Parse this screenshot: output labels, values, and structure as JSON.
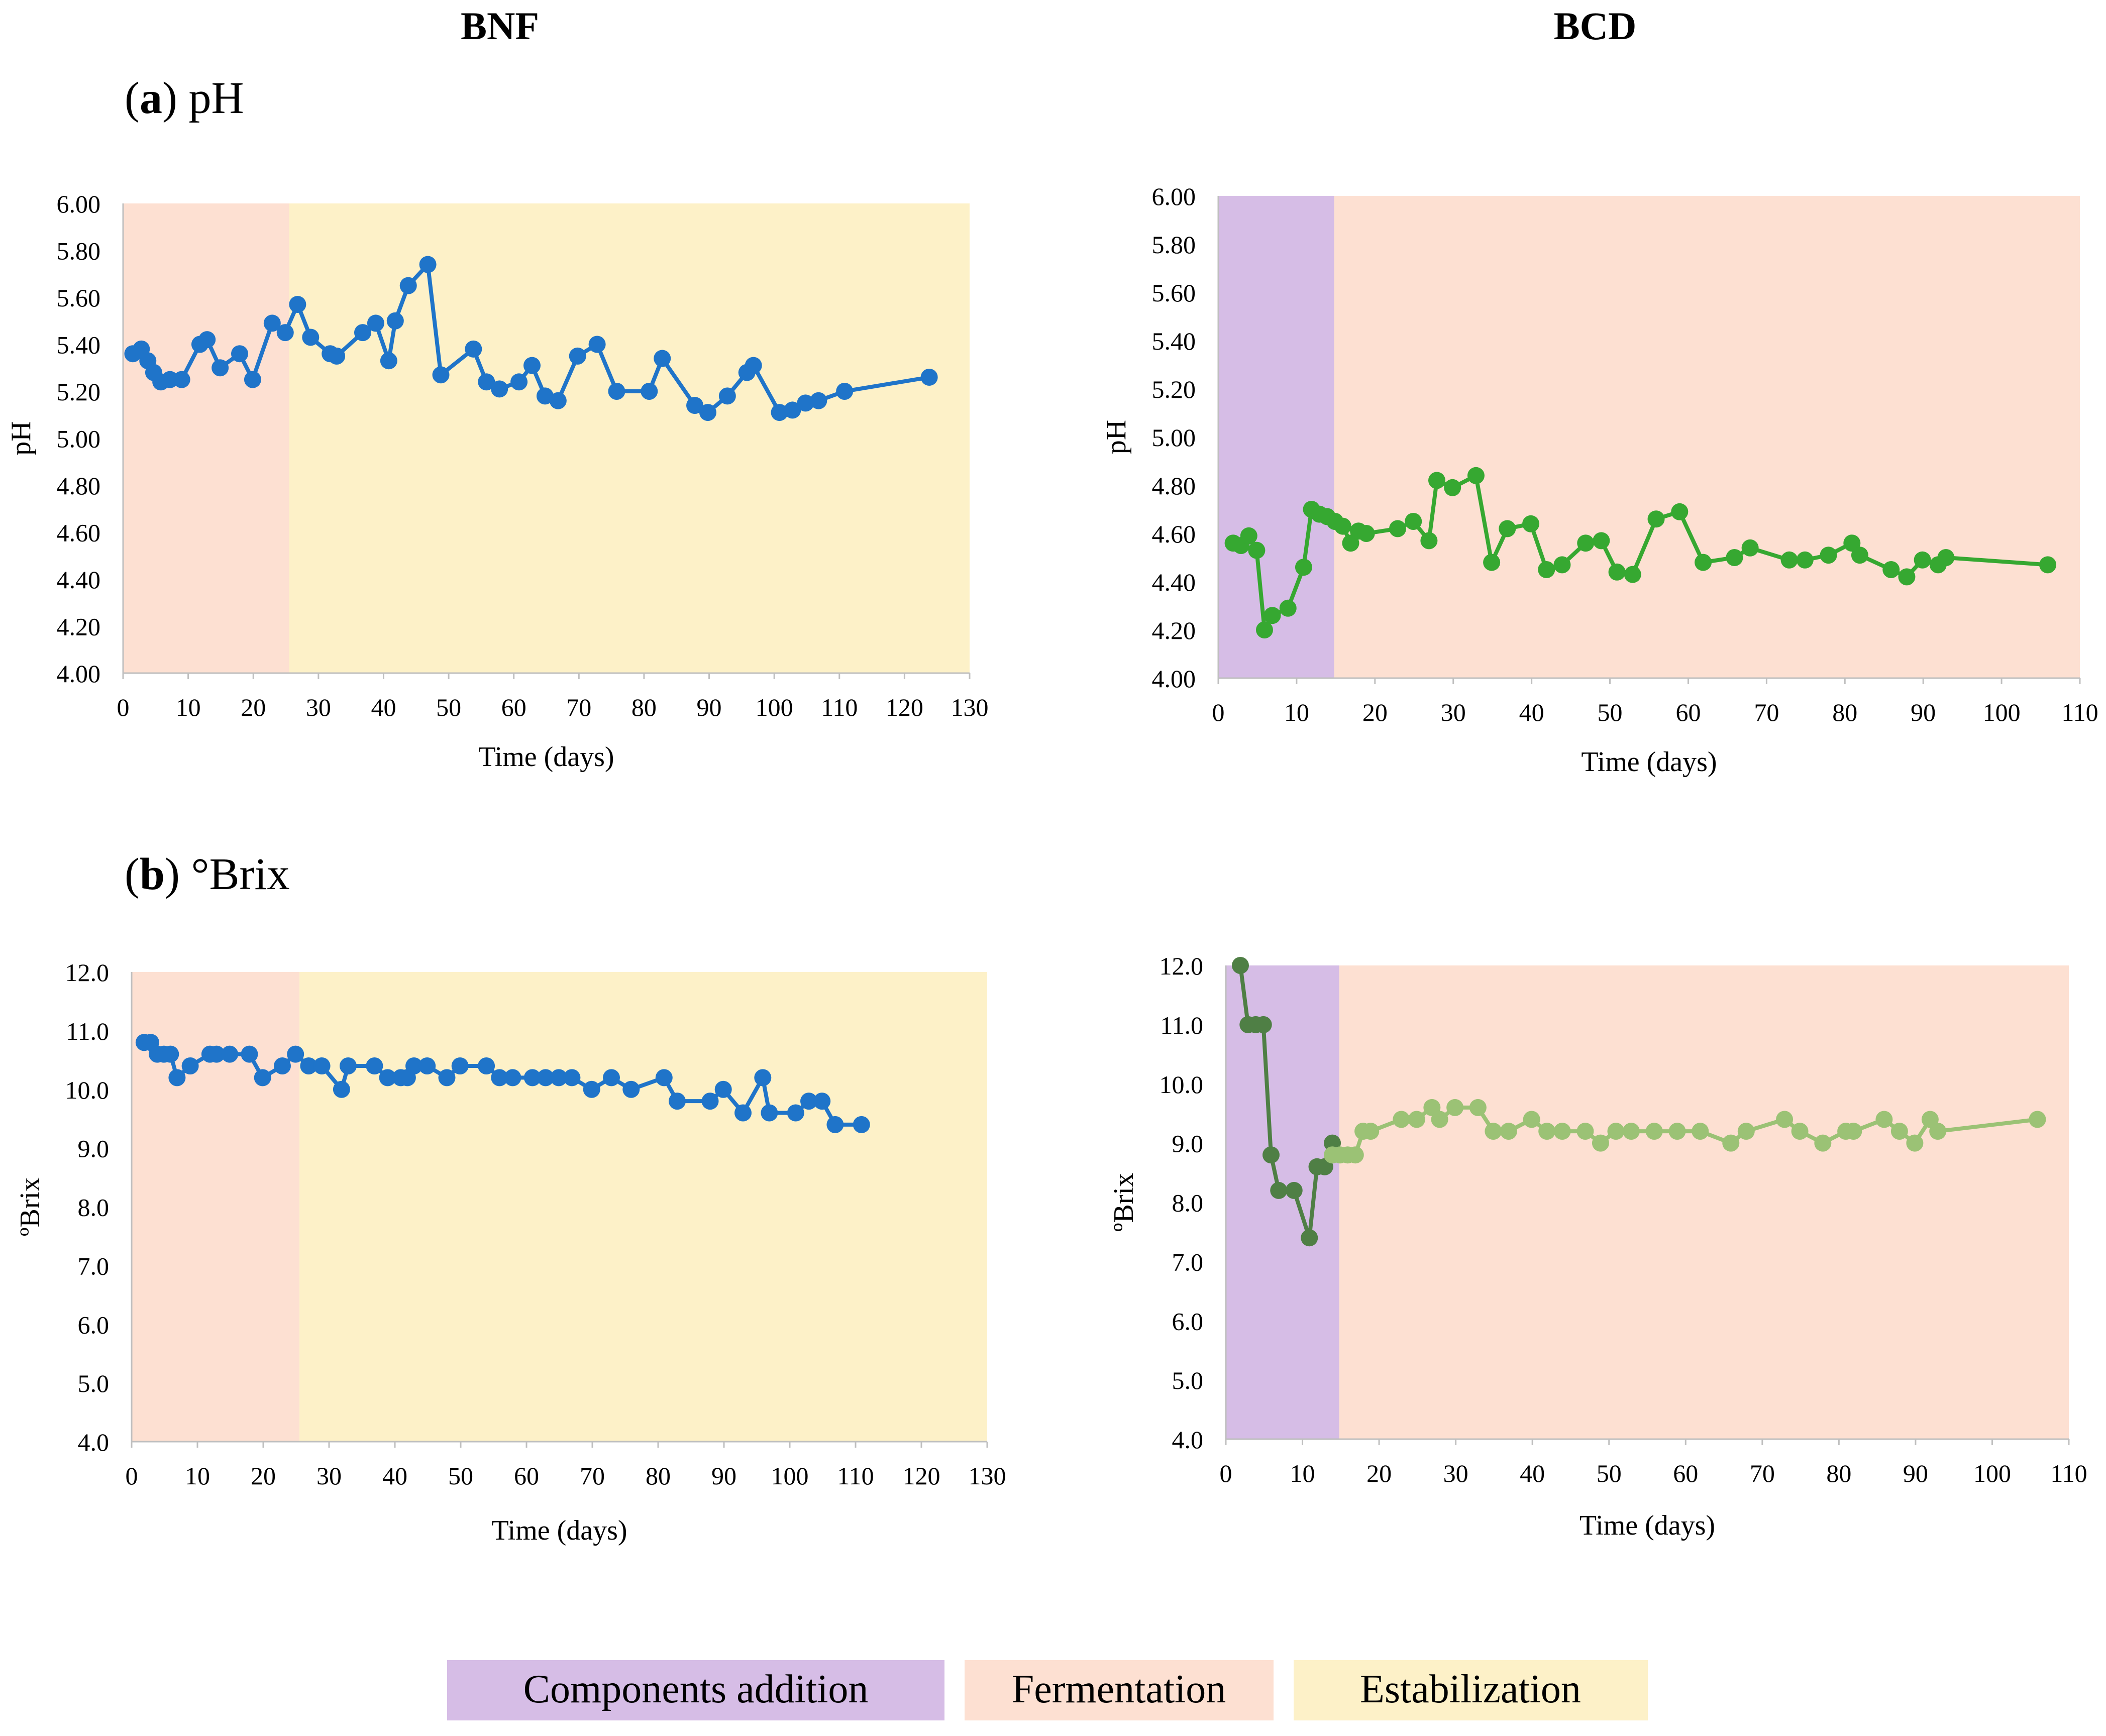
{
  "titles": {
    "left": "BNF",
    "right": "BCD",
    "row_a_letter": "a",
    "row_a_text": "pH",
    "row_b_letter": "b",
    "row_b_text": "°Brix"
  },
  "colors": {
    "components": "#d6bde6",
    "fermentation": "#fde0d2",
    "stabilization": "#fdf1c8",
    "bnf_line": "#1f74c9",
    "bcd_ph_line": "#36a831",
    "bcd_brix_dark": "#4f7f45",
    "bcd_brix_light": "#9bc275",
    "axis": "#bfbfbf",
    "text": "#000000"
  },
  "legend": {
    "items": [
      {
        "label": "Components addition",
        "color": "#d6bde6"
      },
      {
        "label": "Fermentation",
        "color": "#fde0d2"
      },
      {
        "label": "Estabilization",
        "color": "#fdf1c8"
      }
    ]
  },
  "chart_data": [
    {
      "id": "bnf_ph",
      "type": "line",
      "title": "BNF pH",
      "xlabel": "Time (days)",
      "ylabel": "pH",
      "xlim": [
        0,
        130
      ],
      "ylim": [
        4.0,
        6.0
      ],
      "xticks": [
        0,
        10,
        20,
        30,
        40,
        50,
        60,
        70,
        80,
        90,
        100,
        110,
        120,
        130
      ],
      "yticks": [
        4.0,
        4.2,
        4.4,
        4.6,
        4.8,
        5.0,
        5.2,
        5.4,
        5.6,
        5.8,
        6.0
      ],
      "ydecimals": 2,
      "phases": [
        {
          "name": "Fermentation",
          "from": 0,
          "to": 25.5,
          "color": "#fde0d2"
        },
        {
          "name": "Estabilization",
          "from": 25.5,
          "to": 130,
          "color": "#fdf1c8"
        }
      ],
      "series": [
        {
          "name": "BNF pH",
          "color": "#1f74c9",
          "x": [
            1.5,
            2.8,
            3.8,
            4.7,
            5.8,
            7.2,
            9,
            11.8,
            12.9,
            14.9,
            17.9,
            19.9,
            22.9,
            24.9,
            26.8,
            28.8,
            31.8,
            32.8,
            36.8,
            38.8,
            40.8,
            41.8,
            43.8,
            46.8,
            48.8,
            53.8,
            55.8,
            57.8,
            60.8,
            62.8,
            64.8,
            66.8,
            69.8,
            72.8,
            75.8,
            80.8,
            82.8,
            87.8,
            89.8,
            92.8,
            95.8,
            96.8,
            100.8,
            102.8,
            104.8,
            106.8,
            110.8,
            123.8
          ],
          "y": [
            5.36,
            5.38,
            5.33,
            5.28,
            5.24,
            5.25,
            5.25,
            5.4,
            5.42,
            5.3,
            5.36,
            5.25,
            5.49,
            5.45,
            5.57,
            5.43,
            5.36,
            5.35,
            5.45,
            5.49,
            5.33,
            5.5,
            5.65,
            5.74,
            5.27,
            5.38,
            5.24,
            5.21,
            5.24,
            5.31,
            5.18,
            5.16,
            5.35,
            5.4,
            5.2,
            5.2,
            5.34,
            5.14,
            5.11,
            5.18,
            5.28,
            5.31,
            5.11,
            5.12,
            5.15,
            5.16,
            5.2,
            5.26
          ]
        }
      ]
    },
    {
      "id": "bcd_ph",
      "type": "line",
      "title": "BCD pH",
      "xlabel": "Time (days)",
      "ylabel": "pH",
      "xlim": [
        0,
        110
      ],
      "ylim": [
        4.0,
        6.0
      ],
      "xticks": [
        0,
        10,
        20,
        30,
        40,
        50,
        60,
        70,
        80,
        90,
        100,
        110
      ],
      "yticks": [
        4.0,
        4.2,
        4.4,
        4.6,
        4.8,
        5.0,
        5.2,
        5.4,
        5.6,
        5.8,
        6.0
      ],
      "ydecimals": 2,
      "phases": [
        {
          "name": "Components addition",
          "from": 0,
          "to": 14.8,
          "color": "#d6bde6"
        },
        {
          "name": "Fermentation",
          "from": 14.8,
          "to": 110,
          "color": "#fde0d2"
        }
      ],
      "series": [
        {
          "name": "BCD pH",
          "color": "#36a831",
          "x": [
            1.9,
            2.9,
            3.9,
            4.9,
            5.9,
            6.9,
            8.9,
            10.9,
            11.9,
            12.9,
            13.9,
            14.9,
            15.9,
            16.9,
            17.9,
            18.9,
            22.9,
            24.9,
            26.9,
            27.9,
            29.9,
            32.9,
            34.9,
            36.9,
            39.9,
            41.9,
            43.9,
            46.9,
            48.9,
            50.9,
            52.9,
            55.9,
            58.9,
            61.9,
            65.9,
            67.9,
            72.9,
            74.9,
            77.9,
            80.9,
            81.9,
            85.9,
            87.9,
            89.9,
            91.9,
            92.9,
            105.9
          ],
          "y": [
            4.56,
            4.55,
            4.59,
            4.53,
            4.2,
            4.26,
            4.29,
            4.46,
            4.7,
            4.68,
            4.67,
            4.65,
            4.63,
            4.56,
            4.61,
            4.6,
            4.62,
            4.65,
            4.57,
            4.82,
            4.79,
            4.84,
            4.48,
            4.62,
            4.64,
            4.45,
            4.47,
            4.56,
            4.57,
            4.44,
            4.43,
            4.66,
            4.69,
            4.48,
            4.5,
            4.54,
            4.49,
            4.49,
            4.51,
            4.56,
            4.51,
            4.45,
            4.42,
            4.49,
            4.47,
            4.5,
            4.47
          ]
        }
      ]
    },
    {
      "id": "bnf_brix",
      "type": "line",
      "title": "BNF °Brix",
      "xlabel": "Time (days)",
      "ylabel": "ºBrix",
      "xlim": [
        0,
        130
      ],
      "ylim": [
        4.0,
        12.0
      ],
      "xticks": [
        0,
        10,
        20,
        30,
        40,
        50,
        60,
        70,
        80,
        90,
        100,
        110,
        120,
        130
      ],
      "yticks": [
        4.0,
        5.0,
        6.0,
        7.0,
        8.0,
        9.0,
        10.0,
        11.0,
        12.0
      ],
      "ydecimals": 1,
      "phases": [
        {
          "name": "Fermentation",
          "from": 0,
          "to": 25.5,
          "color": "#fde0d2"
        },
        {
          "name": "Estabilization",
          "from": 25.5,
          "to": 130,
          "color": "#fdf1c8"
        }
      ],
      "series": [
        {
          "name": "BNF °Brix",
          "color": "#1f74c9",
          "x": [
            1.9,
            2.9,
            3.9,
            4.9,
            5.9,
            6.9,
            8.9,
            11.9,
            12.9,
            14.9,
            17.9,
            19.9,
            22.9,
            24.9,
            26.9,
            28.9,
            31.9,
            32.9,
            36.9,
            38.9,
            40.9,
            41.9,
            42.9,
            44.9,
            47.9,
            49.9,
            53.9,
            55.9,
            57.9,
            60.9,
            62.9,
            64.9,
            66.9,
            69.9,
            72.9,
            75.9,
            80.9,
            82.9,
            87.9,
            89.9,
            92.9,
            95.9,
            96.9,
            100.9,
            102.9,
            104.9,
            106.9,
            110.9
          ],
          "y": [
            10.8,
            10.8,
            10.6,
            10.6,
            10.6,
            10.2,
            10.4,
            10.6,
            10.6,
            10.6,
            10.6,
            10.2,
            10.4,
            10.6,
            10.4,
            10.4,
            10.0,
            10.4,
            10.4,
            10.2,
            10.2,
            10.2,
            10.4,
            10.4,
            10.2,
            10.4,
            10.4,
            10.2,
            10.2,
            10.2,
            10.2,
            10.2,
            10.2,
            10.0,
            10.2,
            10.0,
            10.2,
            9.8,
            9.8,
            10.0,
            9.6,
            10.2,
            9.6,
            9.6,
            9.8,
            9.8,
            9.4,
            9.4
          ]
        }
      ]
    },
    {
      "id": "bcd_brix",
      "type": "line",
      "title": "BCD °Brix",
      "xlabel": "Time (days)",
      "ylabel": "ºBrix",
      "xlim": [
        0,
        110
      ],
      "ylim": [
        4.0,
        12.0
      ],
      "xticks": [
        0,
        10,
        20,
        30,
        40,
        50,
        60,
        70,
        80,
        90,
        100,
        110
      ],
      "yticks": [
        4.0,
        5.0,
        6.0,
        7.0,
        8.0,
        9.0,
        10.0,
        11.0,
        12.0
      ],
      "ydecimals": 1,
      "phases": [
        {
          "name": "Components addition",
          "from": 0,
          "to": 14.8,
          "color": "#d6bde6"
        },
        {
          "name": "Fermentation",
          "from": 14.8,
          "to": 110,
          "color": "#fde0d2"
        }
      ],
      "series": [
        {
          "name": "BCD °Brix components addition",
          "color": "#4f7f45",
          "x": [
            1.9,
            2.9,
            3.9,
            4.9,
            5.9,
            6.9,
            8.9,
            10.9,
            11.9,
            12.9,
            13.9
          ],
          "y": [
            12.0,
            11.0,
            11.0,
            11.0,
            8.8,
            8.2,
            8.2,
            7.4,
            8.6,
            8.6,
            9.0
          ]
        },
        {
          "name": "BCD °Brix fermentation",
          "color": "#9bc275",
          "x": [
            13.9,
            14.9,
            15.9,
            16.9,
            17.9,
            18.9,
            22.9,
            24.9,
            26.9,
            27.9,
            29.9,
            32.9,
            34.9,
            36.9,
            39.9,
            41.9,
            43.9,
            46.9,
            48.9,
            50.9,
            52.9,
            55.9,
            58.9,
            61.9,
            65.9,
            67.9,
            72.9,
            74.9,
            77.9,
            80.9,
            81.9,
            85.9,
            87.9,
            89.9,
            91.9,
            92.9,
            105.9
          ],
          "y": [
            8.8,
            8.8,
            8.8,
            8.8,
            9.2,
            9.2,
            9.4,
            9.4,
            9.6,
            9.4,
            9.6,
            9.6,
            9.2,
            9.2,
            9.4,
            9.2,
            9.2,
            9.2,
            9.0,
            9.2,
            9.2,
            9.2,
            9.2,
            9.2,
            9.0,
            9.2,
            9.4,
            9.2,
            9.0,
            9.2,
            9.2,
            9.4,
            9.2,
            9.0,
            9.4,
            9.2,
            9.4
          ]
        }
      ]
    }
  ]
}
